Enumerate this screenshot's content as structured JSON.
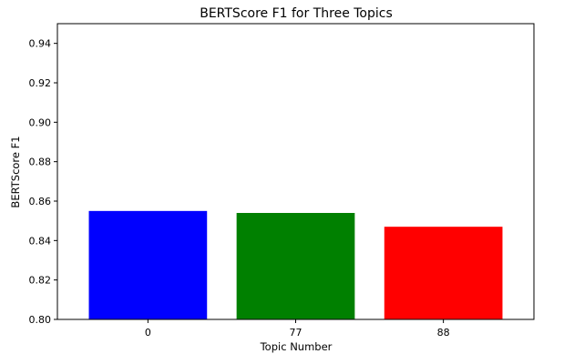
{
  "chart_data": {
    "type": "bar",
    "title": "BERTScore F1 for Three Topics",
    "xlabel": "Topic Number",
    "ylabel": "BERTScore F1",
    "categories": [
      "0",
      "77",
      "88"
    ],
    "values": [
      0.855,
      0.854,
      0.847
    ],
    "colors": [
      "#0000ff",
      "#008000",
      "#ff0000"
    ],
    "ylim": [
      0.8,
      0.95
    ],
    "yticks": [
      "0.80",
      "0.82",
      "0.84",
      "0.86",
      "0.88",
      "0.90",
      "0.92",
      "0.94"
    ],
    "grid": false,
    "legend": "none"
  }
}
